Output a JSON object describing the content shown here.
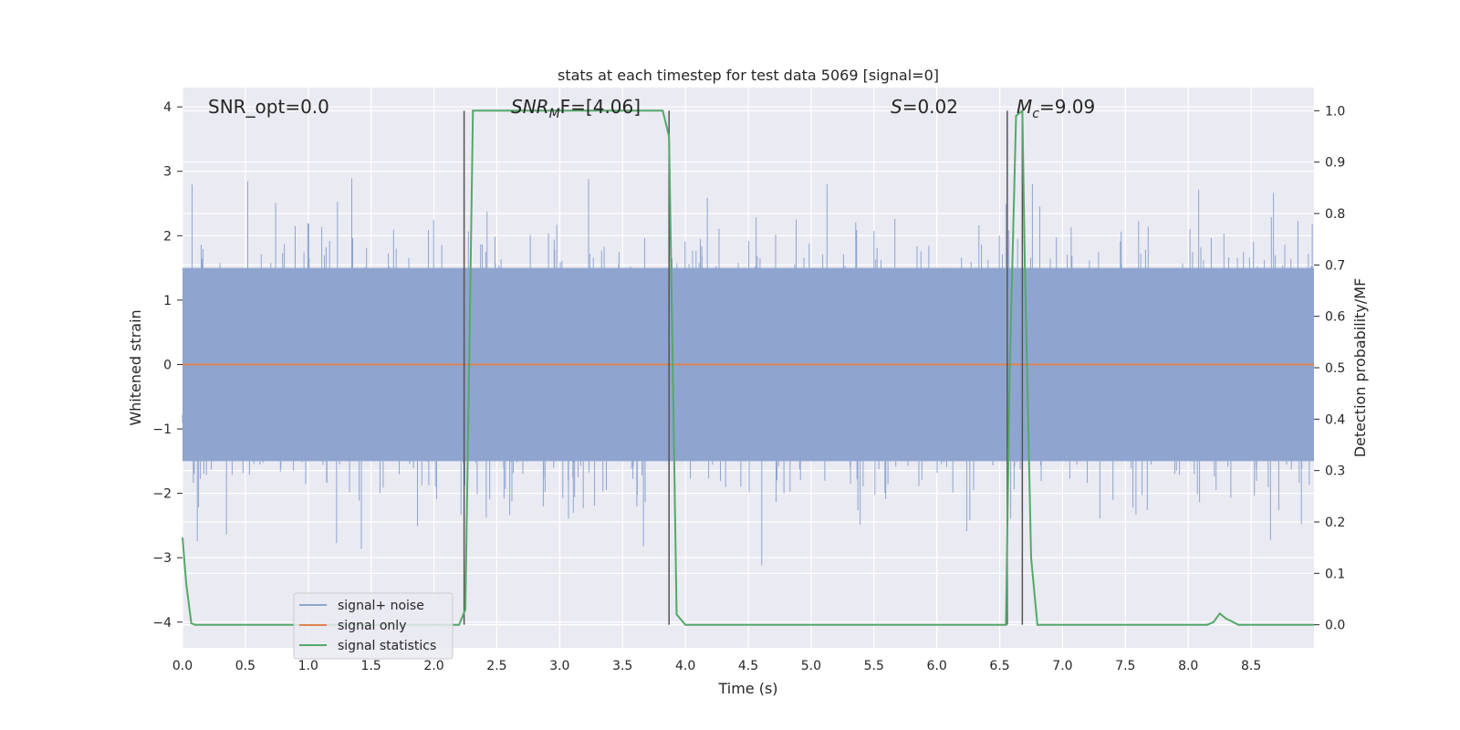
{
  "chart_data": {
    "type": "line",
    "title": "stats at each timestep for test data 5069 [signal=0]",
    "xlabel": "Time (s)",
    "ylabel": "Whitened strain",
    "ylabel_right": "Detection probability/MF",
    "xlim": [
      0.0,
      9.0
    ],
    "ylim": [
      -4.4,
      4.3
    ],
    "ylim_right": [
      -0.045,
      1.045
    ],
    "grid": true,
    "legend_position": "lower-left",
    "x_ticks": [
      "0.0",
      "0.5",
      "1.0",
      "1.5",
      "2.0",
      "2.5",
      "3.0",
      "3.5",
      "4.0",
      "4.5",
      "5.0",
      "5.5",
      "6.0",
      "6.5",
      "7.0",
      "7.5",
      "8.0",
      "8.5"
    ],
    "y_ticks": [
      "4",
      "3",
      "2",
      "1",
      "0",
      "−1",
      "−2",
      "−3",
      "−4"
    ],
    "y_ticks_right": [
      "1.0",
      "0.9",
      "0.8",
      "0.7",
      "0.6",
      "0.5",
      "0.4",
      "0.3",
      "0.2",
      "0.1",
      "0.0"
    ],
    "annotations": {
      "snr_opt": "SNR_opt=0.0",
      "snr_mf_main": "SNR",
      "snr_mf_sub": "M",
      "snr_mf_rest": "F=[4.06]",
      "s_main": "S",
      "s_rest": "=0.02",
      "mc_main": "M",
      "mc_sub": "c",
      "mc_rest": "=9.09"
    },
    "vertical_markers_x": [
      2.24,
      3.87,
      6.56,
      6.68
    ],
    "series": [
      {
        "name": "signal+ noise",
        "color": "#8fa5cf",
        "description_values": "whitened noise, amplitude mostly within ±2.5",
        "envelope": {
          "core": 1.5,
          "peak_max": 3.8,
          "peak_min": -3.9
        }
      },
      {
        "name": "signal only",
        "color": "#dd8452",
        "constant_value": 0.0
      },
      {
        "name": "signal statistics",
        "color": "#55a868",
        "axis": "right",
        "x": [
          0.0,
          0.03,
          0.07,
          0.1,
          0.8,
          2.2,
          2.25,
          2.28,
          2.31,
          2.5,
          3.0,
          3.5,
          3.82,
          3.87,
          3.9,
          3.93,
          4.0,
          6.55,
          6.58,
          6.63,
          6.68,
          6.7,
          6.75,
          6.8,
          7.7,
          8.15,
          8.2,
          8.25,
          8.3,
          8.4,
          9.0
        ],
        "y": [
          0.17,
          0.08,
          0.003,
          0.0,
          0.0,
          0.0,
          0.03,
          0.5,
          1.0,
          1.0,
          1.0,
          1.0,
          1.0,
          0.95,
          0.5,
          0.02,
          0.0,
          0.0,
          0.5,
          0.99,
          1.0,
          0.7,
          0.13,
          0.0,
          0.0,
          0.0,
          0.005,
          0.022,
          0.012,
          0.0,
          0.0
        ]
      }
    ]
  }
}
